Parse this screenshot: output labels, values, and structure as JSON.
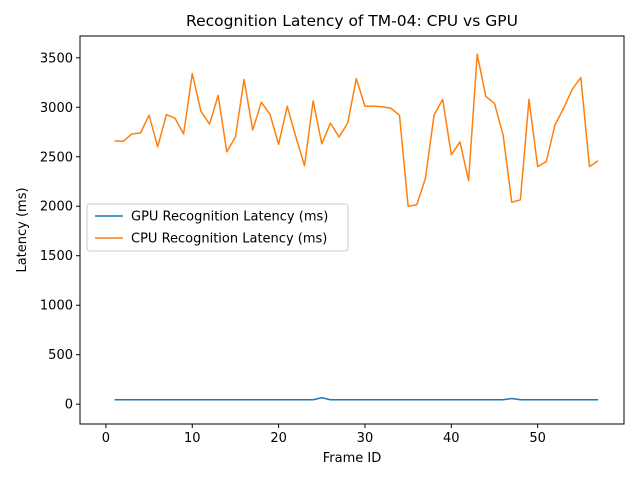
{
  "chart_data": {
    "type": "line",
    "title": "Recognition Latency of TM-04: CPU vs GPU",
    "xlabel": "Frame ID",
    "ylabel": "Latency (ms)",
    "xlim": [
      -3,
      60
    ],
    "ylim": [
      -200,
      3720
    ],
    "xticks": [
      0,
      10,
      20,
      30,
      40,
      50
    ],
    "yticks": [
      0,
      500,
      1000,
      1500,
      2000,
      2500,
      3000,
      3500
    ],
    "grid": false,
    "legend_position": "center-left",
    "series": [
      {
        "name": "GPU Recognition Latency (ms)",
        "color": "#1f77b4",
        "x": [
          1,
          2,
          3,
          4,
          5,
          6,
          7,
          8,
          9,
          10,
          11,
          12,
          13,
          14,
          15,
          16,
          17,
          18,
          19,
          20,
          21,
          22,
          23,
          24,
          25,
          26,
          27,
          28,
          29,
          30,
          31,
          32,
          33,
          34,
          35,
          36,
          37,
          38,
          39,
          40,
          41,
          42,
          43,
          44,
          45,
          46,
          47,
          48,
          49,
          50,
          51,
          52,
          53,
          54,
          55,
          56,
          57
        ],
        "y": [
          45,
          45,
          45,
          45,
          45,
          45,
          45,
          45,
          45,
          45,
          45,
          45,
          45,
          45,
          45,
          45,
          45,
          45,
          45,
          45,
          45,
          45,
          45,
          45,
          65,
          45,
          45,
          45,
          45,
          45,
          45,
          45,
          45,
          45,
          45,
          45,
          45,
          45,
          45,
          45,
          45,
          45,
          45,
          45,
          45,
          45,
          58,
          45,
          45,
          45,
          45,
          45,
          45,
          45,
          45,
          45,
          45
        ]
      },
      {
        "name": "CPU Recognition Latency (ms)",
        "color": "#ff7f0e",
        "x": [
          1,
          2,
          3,
          4,
          5,
          6,
          7,
          8,
          9,
          10,
          11,
          12,
          13,
          14,
          15,
          16,
          17,
          18,
          19,
          20,
          21,
          22,
          23,
          24,
          25,
          26,
          27,
          28,
          29,
          30,
          31,
          32,
          33,
          34,
          35,
          36,
          37,
          38,
          39,
          40,
          41,
          42,
          43,
          44,
          45,
          46,
          47,
          48,
          49,
          50,
          51,
          52,
          53,
          54,
          55,
          56,
          57
        ],
        "y": [
          2660,
          2655,
          2730,
          2740,
          2920,
          2600,
          2925,
          2890,
          2730,
          3340,
          2960,
          2830,
          3120,
          2550,
          2700,
          3280,
          2770,
          3050,
          2930,
          2625,
          3010,
          2700,
          2410,
          3065,
          2630,
          2840,
          2700,
          2840,
          3290,
          3010,
          3010,
          3005,
          2990,
          2920,
          2000,
          2015,
          2280,
          2920,
          3080,
          2520,
          2650,
          2260,
          3535,
          3110,
          3040,
          2720,
          2040,
          2065,
          3080,
          2400,
          2450,
          2820,
          2990,
          3180,
          3300,
          2400,
          2460
        ]
      }
    ]
  }
}
